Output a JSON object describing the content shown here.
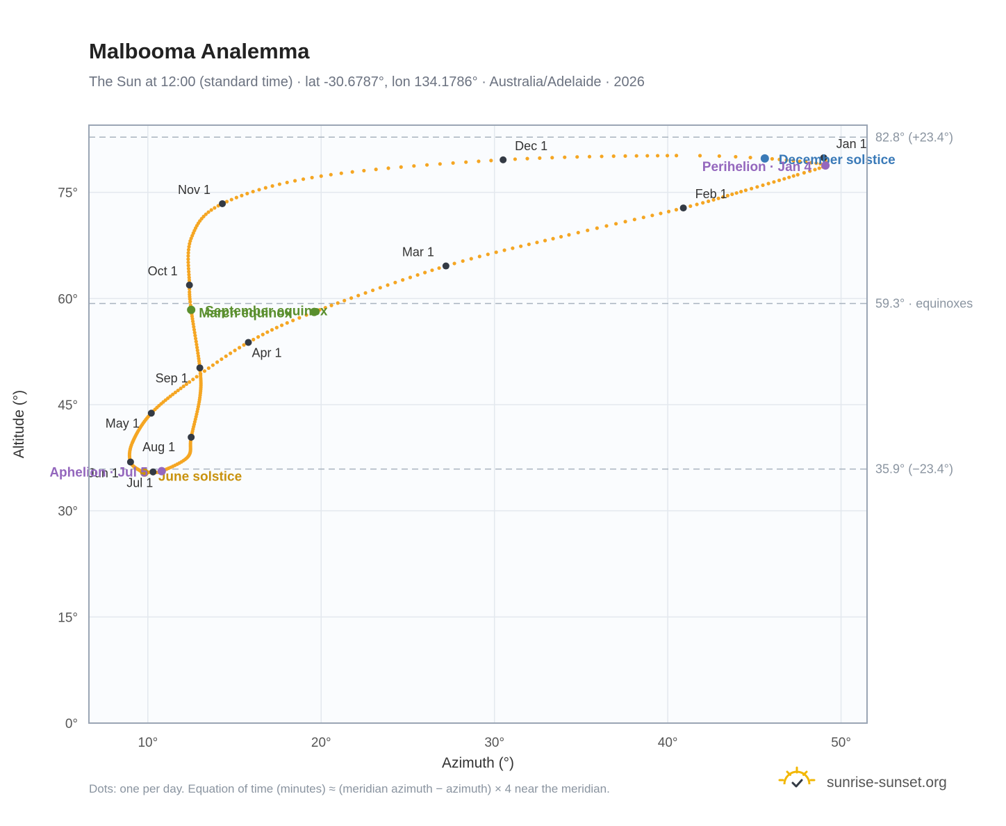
{
  "chart_data": {
    "type": "scatter",
    "title": "Malbooma Analemma",
    "subtitle": "The Sun at 12:00 (standard time) · lat -30.6787°, lon 134.1786° · Australia/Adelaide · 2026",
    "xlabel": "Azimuth (°)",
    "ylabel": "Altitude (°)",
    "xlim": [
      6.6,
      51.5
    ],
    "ylim": [
      0,
      84.5
    ],
    "x_ticks": [
      10,
      20,
      30,
      40,
      50
    ],
    "y_ticks": [
      0,
      15,
      30,
      45,
      60,
      75
    ],
    "x_tick_labels": [
      "10°",
      "20°",
      "30°",
      "40°",
      "50°"
    ],
    "y_tick_labels": [
      "0°",
      "15°",
      "30°",
      "45°",
      "60°",
      "75°"
    ],
    "grid": true,
    "reference_lines": [
      {
        "y": 82.8,
        "label": "82.8° (+23.4°)"
      },
      {
        "y": 59.3,
        "label": "59.3° · equinoxes"
      },
      {
        "y": 35.9,
        "label": "35.9° (−23.4°)"
      }
    ],
    "series": [
      {
        "path": [
          {
            "day": 1,
            "azimuth": 49.0,
            "altitude": 79.9
          },
          {
            "day": 4,
            "azimuth": 49.1,
            "altitude": 78.8
          },
          {
            "day": 10,
            "azimuth": 47.5,
            "altitude": 77.5
          },
          {
            "day": 20,
            "azimuth": 44.5,
            "altitude": 75.3
          },
          {
            "day": 32,
            "azimuth": 40.9,
            "altitude": 72.8
          },
          {
            "day": 45,
            "azimuth": 34.3,
            "altitude": 69.0
          },
          {
            "day": 60,
            "azimuth": 27.2,
            "altitude": 64.6
          },
          {
            "day": 79,
            "azimuth": 19.6,
            "altitude": 58.1
          },
          {
            "day": 91,
            "azimuth": 15.8,
            "altitude": 53.8
          },
          {
            "day": 105,
            "azimuth": 12.4,
            "altitude": 48.2
          },
          {
            "day": 121,
            "azimuth": 10.2,
            "altitude": 43.8
          },
          {
            "day": 140,
            "azimuth": 9.1,
            "altitude": 39.6
          },
          {
            "day": 152,
            "azimuth": 9.0,
            "altitude": 36.9
          },
          {
            "day": 166,
            "azimuth": 9.6,
            "altitude": 35.6
          },
          {
            "day": 172,
            "azimuth": 9.8,
            "altitude": 35.4
          },
          {
            "day": 182,
            "azimuth": 10.3,
            "altitude": 35.5
          },
          {
            "day": 186,
            "azimuth": 10.8,
            "altitude": 35.6
          },
          {
            "day": 200,
            "azimuth": 12.3,
            "altitude": 37.6
          },
          {
            "day": 213,
            "azimuth": 12.5,
            "altitude": 40.4
          },
          {
            "day": 230,
            "azimuth": 13.0,
            "altitude": 46.0
          },
          {
            "day": 244,
            "azimuth": 13.0,
            "altitude": 50.2
          },
          {
            "day": 266,
            "azimuth": 12.5,
            "altitude": 58.4
          },
          {
            "day": 274,
            "azimuth": 12.4,
            "altitude": 61.9
          },
          {
            "day": 290,
            "azimuth": 12.5,
            "altitude": 68.5
          },
          {
            "day": 305,
            "azimuth": 14.3,
            "altitude": 73.4
          },
          {
            "day": 320,
            "azimuth": 20.0,
            "altitude": 77.3
          },
          {
            "day": 335,
            "azimuth": 30.5,
            "altitude": 79.6
          },
          {
            "day": 350,
            "azimuth": 40.5,
            "altitude": 80.2
          },
          {
            "day": 355,
            "azimuth": 45.6,
            "altitude": 79.8
          },
          {
            "day": 365,
            "azimuth": 49.0,
            "altitude": 79.0
          }
        ]
      }
    ],
    "months": [
      {
        "label": "Jan 1",
        "azimuth": 49.0,
        "altitude": 79.9
      },
      {
        "label": "Feb 1",
        "azimuth": 40.9,
        "altitude": 72.8
      },
      {
        "label": "Mar 1",
        "azimuth": 27.2,
        "altitude": 64.6
      },
      {
        "label": "Apr 1",
        "azimuth": 15.8,
        "altitude": 53.8
      },
      {
        "label": "May 1",
        "azimuth": 10.2,
        "altitude": 43.8
      },
      {
        "label": "Jun 1",
        "azimuth": 9.0,
        "altitude": 36.9
      },
      {
        "label": "Jul 1",
        "azimuth": 10.3,
        "altitude": 35.5
      },
      {
        "label": "Aug 1",
        "azimuth": 12.5,
        "altitude": 40.4
      },
      {
        "label": "Sep 1",
        "azimuth": 13.0,
        "altitude": 50.2
      },
      {
        "label": "Oct 1",
        "azimuth": 12.4,
        "altitude": 61.9
      },
      {
        "label": "Nov 1",
        "azimuth": 14.3,
        "altitude": 73.4
      },
      {
        "label": "Dec 1",
        "azimuth": 30.5,
        "altitude": 79.6
      }
    ],
    "events": [
      {
        "label": "March equinox",
        "azimuth": 19.6,
        "altitude": 58.1,
        "color": "#5a8f2e"
      },
      {
        "label": "September equinox",
        "azimuth": 12.5,
        "altitude": 58.4,
        "color": "#5a8f2e"
      },
      {
        "label": "June solstice",
        "azimuth": 9.8,
        "altitude": 35.4,
        "color": "#c9920e"
      },
      {
        "label": "December solstice",
        "azimuth": 45.6,
        "altitude": 79.8,
        "color": "#3a7ab8"
      },
      {
        "label": "Perihelion · Jan 4",
        "azimuth": 49.1,
        "altitude": 78.8,
        "color": "#9467bd"
      },
      {
        "label": "Aphelion · Jul 5",
        "azimuth": 10.8,
        "altitude": 35.6,
        "color": "#9467bd"
      }
    ],
    "footnote": "Dots: one per day. Equation of time (minutes) ≈ (meridian azimuth − azimuth) × 4 near the meridian.",
    "colors": {
      "path": "#f5a623",
      "month_marker": "#333a44",
      "plot_bg": "#fafcfe",
      "frame": "#9aa5b4"
    }
  },
  "brand": {
    "name": "sunrise-sunset.org",
    "icon": "sun-logo-icon"
  }
}
